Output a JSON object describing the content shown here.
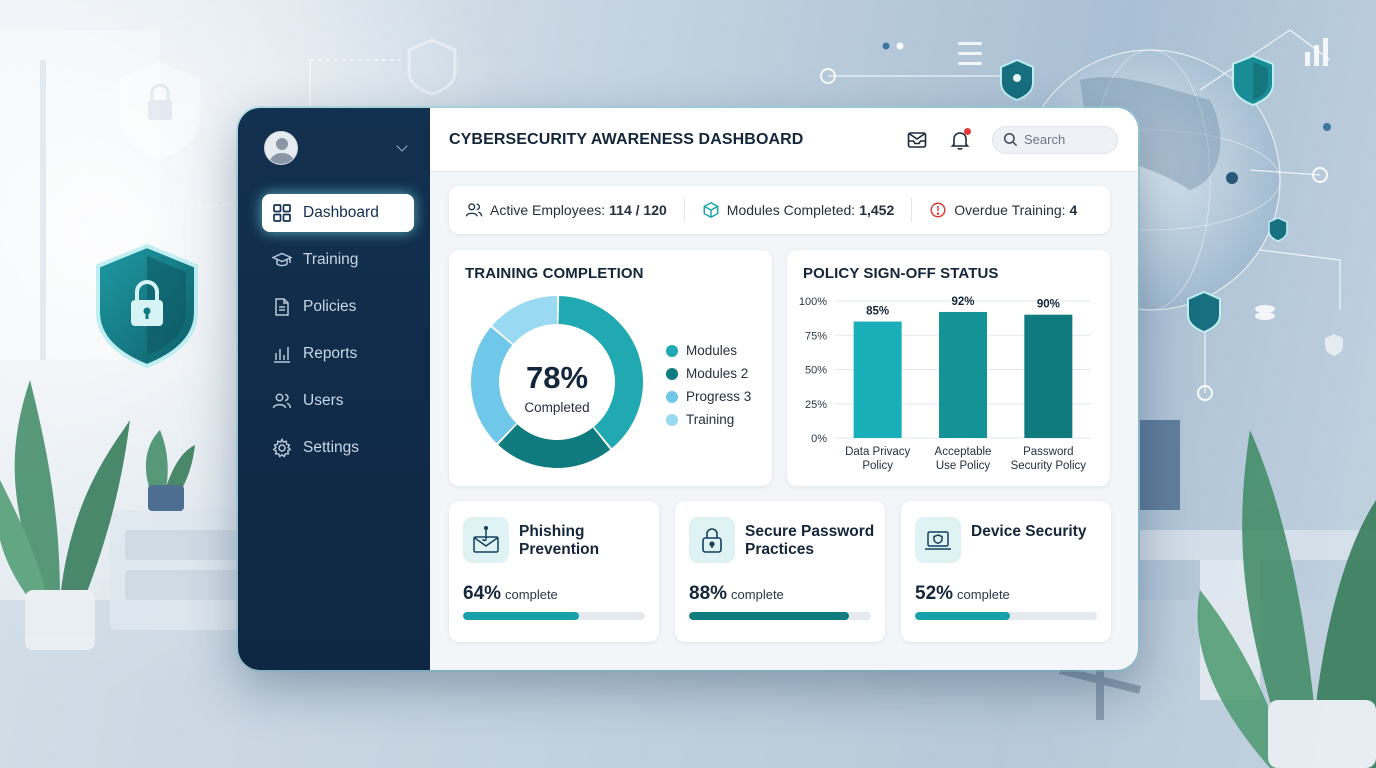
{
  "header": {
    "title": "CYBERSECURITY AWARENESS DASHBOARD"
  },
  "search": {
    "placeholder": "Search"
  },
  "sidebar": {
    "items": [
      {
        "label": "Dashboard",
        "icon": "grid-icon",
        "active": true
      },
      {
        "label": "Training",
        "icon": "graduation-cap-icon"
      },
      {
        "label": "Policies",
        "icon": "document-icon"
      },
      {
        "label": "Reports",
        "icon": "bar-chart-icon"
      },
      {
        "label": "Users",
        "icon": "users-icon"
      },
      {
        "label": "Settings",
        "icon": "gear-icon"
      }
    ]
  },
  "stats": [
    {
      "label": "Active Employees:",
      "value": "114 / 120",
      "icon": "users-icon"
    },
    {
      "label": "Modules Completed:",
      "value": "1,452",
      "icon": "cube-icon"
    },
    {
      "label": "Overdue Training:",
      "value": "4",
      "icon": "alert-circle-icon"
    }
  ],
  "completion": {
    "title": "TRAINING COMPLETION",
    "center_value": "78%",
    "center_label": "Completed",
    "legend": [
      "Modules",
      "Modules 2",
      "Progress 3",
      "Training"
    ]
  },
  "policy": {
    "title": "POLICY SIGN-OFF STATUS"
  },
  "modules": [
    {
      "title": "Phishing Prevention",
      "pct": "64%",
      "suffix": "complete",
      "progress": 0.64,
      "icon": "phishing-mail-icon"
    },
    {
      "title": "Secure Password Practices",
      "pct": "88%",
      "suffix": "complete",
      "progress": 0.88,
      "icon": "padlock-icon"
    },
    {
      "title": "Device Security",
      "pct": "52%",
      "suffix": "complete",
      "progress": 0.52,
      "icon": "laptop-shield-icon"
    }
  ],
  "colors": {
    "sidebar": "#12304f",
    "accent_dark": "#0f7b7e",
    "accent": "#17a2ab",
    "accent_light": "#39bcc4",
    "sky": "#6fc7ea",
    "sky_light": "#9ad9f2",
    "alert": "#d63b32"
  },
  "chart_data": [
    {
      "type": "pie",
      "title": "TRAINING COMPLETION",
      "donut": true,
      "categories": [
        "Modules",
        "Modules 2",
        "Progress 3",
        "Training"
      ],
      "values": [
        39,
        23,
        24,
        14
      ],
      "colors": [
        "#20a9b1",
        "#0f7b7e",
        "#6fc7ea",
        "#9ad9f2"
      ],
      "legend": "right"
    },
    {
      "type": "bar",
      "title": "POLICY SIGN-OFF STATUS",
      "categories": [
        "Data Privacy Policy",
        "Acceptable Use Policy",
        "Password Security Policy"
      ],
      "category_lines": [
        [
          "Data Privacy",
          "Policy"
        ],
        [
          "Acceptable",
          "Use Policy"
        ],
        [
          "Password",
          "Security Policy"
        ]
      ],
      "values": [
        85,
        92,
        90
      ],
      "data_labels": [
        "85%",
        "92%",
        "90%"
      ],
      "ylim": [
        0,
        100
      ],
      "yticks": [
        0,
        25,
        50,
        75,
        100
      ],
      "ytick_labels": [
        "0%",
        "25%",
        "50%",
        "75%",
        "100%"
      ],
      "colors": [
        "#19aeb8",
        "#149397",
        "#0f7b7e"
      ],
      "grid": true
    }
  ]
}
